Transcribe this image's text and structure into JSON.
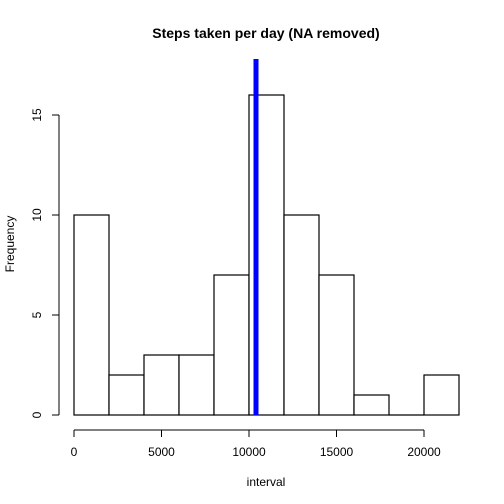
{
  "chart_data": {
    "type": "bar",
    "title": "Steps taken per day (NA removed)",
    "xlabel": "interval",
    "ylabel": "Frequency",
    "bins": [
      {
        "start": 0,
        "end": 2000,
        "count": 10
      },
      {
        "start": 2000,
        "end": 4000,
        "count": 2
      },
      {
        "start": 4000,
        "end": 6000,
        "count": 3
      },
      {
        "start": 6000,
        "end": 8000,
        "count": 3
      },
      {
        "start": 8000,
        "end": 10000,
        "count": 7
      },
      {
        "start": 10000,
        "end": 12000,
        "count": 16
      },
      {
        "start": 12000,
        "end": 14000,
        "count": 10
      },
      {
        "start": 14000,
        "end": 16000,
        "count": 7
      },
      {
        "start": 16000,
        "end": 18000,
        "count": 1
      },
      {
        "start": 18000,
        "end": 20000,
        "count": 0
      },
      {
        "start": 20000,
        "end": 22000,
        "count": 2
      }
    ],
    "xlim": [
      0,
      22000
    ],
    "ylim": [
      0,
      16
    ],
    "x_ticks": [
      0,
      5000,
      10000,
      15000,
      20000
    ],
    "x_tick_labels": [
      "0",
      "5000",
      "10000",
      "15000",
      "20000"
    ],
    "y_ticks": [
      0,
      5,
      10,
      15
    ],
    "y_tick_labels": [
      "0",
      "5",
      "10",
      "15"
    ],
    "mean_line": {
      "x": 10400,
      "color": "#0000ff"
    },
    "bar_fill": "#ffffff",
    "bar_stroke": "#000000",
    "grid": false,
    "legend": "none"
  }
}
